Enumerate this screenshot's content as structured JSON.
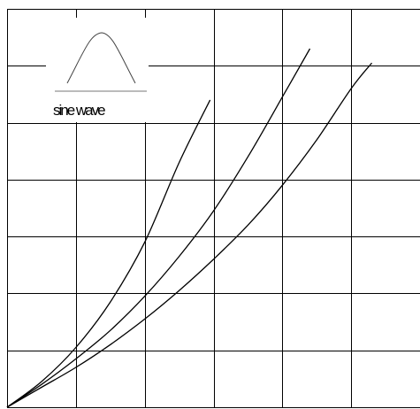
{
  "chart_data": {
    "type": "line",
    "title": "",
    "xlabel": "",
    "ylabel": "",
    "grid": true,
    "xlim": [
      0,
      6
    ],
    "ylim": [
      0,
      7
    ],
    "series": [
      {
        "x": [
          0,
          0.5,
          1,
          1.5,
          2,
          2.5,
          2.95
        ],
        "y": [
          0,
          0.45,
          1.05,
          1.85,
          2.9,
          4.3,
          5.4
        ]
      },
      {
        "x": [
          0,
          0.5,
          1,
          1.5,
          2,
          2.5,
          3,
          3.5,
          4,
          4.4
        ],
        "y": [
          0,
          0.4,
          0.85,
          1.35,
          1.95,
          2.65,
          3.45,
          4.4,
          5.45,
          6.3
        ]
      },
      {
        "x": [
          0,
          0.5,
          1,
          1.5,
          2,
          2.5,
          3,
          3.5,
          4,
          4.5,
          5,
          5.3
        ],
        "y": [
          0,
          0.35,
          0.7,
          1.1,
          1.55,
          2.05,
          2.6,
          3.2,
          3.9,
          4.7,
          5.6,
          6.05
        ]
      }
    ],
    "inset": {
      "label": "sine wave",
      "icon": "half-sine-pulse-icon"
    }
  }
}
